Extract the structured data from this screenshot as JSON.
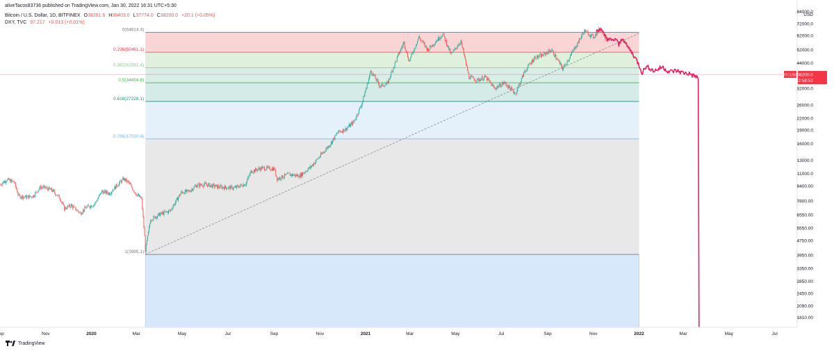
{
  "header": {
    "published": "aliveTacos83736 published on TradingView.com, Jan 30, 2022 16:31 UTC+5:30",
    "btc": {
      "name": "Bitcoin / U.S. Dollar, 1D, BITFINEX",
      "open_label": "O",
      "open": "38201.6",
      "high_label": "H",
      "high": "38403.0",
      "low_label": "L",
      "low": "37774.0",
      "close_label": "C",
      "close": "38200.0",
      "change": "+20.1 (+0.05%)"
    },
    "dxy": {
      "name": "DXY, TVC",
      "value": "97.217",
      "change": "+0.013 (+0.01%)"
    }
  },
  "footer": {
    "brand": "TradingView"
  },
  "colors": {
    "btc_up": "#26a69a",
    "btc_down": "#ef5350",
    "dxy": "#e91e63",
    "price_line": "#f23645",
    "fib_0": "#f8d0d0",
    "fib_1": "#dcefd8",
    "fib_2": "#d4ece4",
    "fib_3": "#cfe9e6",
    "fib_4": "#e1effb",
    "fib_5": "#e5e5e5",
    "fib_6": "#d2e6fa"
  },
  "chart_data": {
    "type": "line",
    "scale": "log",
    "xlim": [
      "2019-09-01",
      "2022-07-31"
    ],
    "ylim": [
      1600,
      86000
    ],
    "currency_label": "USD",
    "y_ticks": [
      84000,
      72000,
      62000,
      52000,
      44000,
      38000,
      32000,
      26000,
      22000,
      19000,
      16000,
      13000,
      11000,
      9400,
      7800,
      6550,
      5550,
      4750,
      3950,
      3350,
      2850,
      2450,
      2090,
      1810
    ],
    "y_tick_labels": [
      "84000.0",
      "72000.0",
      "62000.0",
      "52000.0",
      "44000.0",
      "38000.0",
      "32000.0",
      "26000.0",
      "22000.0",
      "19000.0",
      "16000.0",
      "13000.0",
      "11000.0",
      "9400.00",
      "7800.00",
      "6550.00",
      "5550.00",
      "4750.00",
      "3950.00",
      "3350.00",
      "2850.00",
      "2450.00",
      "2090.00",
      "1810.00"
    ],
    "x_ticks": [
      {
        "date": "2019-09-01",
        "label": "Sep",
        "bold": false
      },
      {
        "date": "2019-11-01",
        "label": "Nov",
        "bold": false
      },
      {
        "date": "2020-01-01",
        "label": "2020",
        "bold": true
      },
      {
        "date": "2020-03-01",
        "label": "Mar",
        "bold": false
      },
      {
        "date": "2020-05-01",
        "label": "May",
        "bold": false
      },
      {
        "date": "2020-07-01",
        "label": "Jul",
        "bold": false
      },
      {
        "date": "2020-09-01",
        "label": "Sep",
        "bold": false
      },
      {
        "date": "2020-11-01",
        "label": "Nov",
        "bold": false
      },
      {
        "date": "2021-01-01",
        "label": "2021",
        "bold": true
      },
      {
        "date": "2021-03-01",
        "label": "Mar",
        "bold": false
      },
      {
        "date": "2021-05-01",
        "label": "May",
        "bold": false
      },
      {
        "date": "2021-07-01",
        "label": "Jul",
        "bold": false
      },
      {
        "date": "2021-09-01",
        "label": "Sep",
        "bold": false
      },
      {
        "date": "2021-11-01",
        "label": "Nov",
        "bold": false
      },
      {
        "date": "2022-01-01",
        "label": "2022",
        "bold": true
      },
      {
        "date": "2022-03-01",
        "label": "Mar",
        "bold": false
      },
      {
        "date": "2022-05-01",
        "label": "May",
        "bold": false
      },
      {
        "date": "2022-07-01",
        "label": "Jul",
        "bold": false
      }
    ],
    "fibonacci": {
      "start": {
        "date": "2020-03-13",
        "price": 3995.1
      },
      "end": {
        "date": "2022-01-01",
        "price": 64814.4
      },
      "levels": [
        {
          "ratio": "0",
          "price": "64814.4",
          "label": "0(64814.4)",
          "color": "#787b86"
        },
        {
          "ratio": "0.236",
          "price": "50461.1",
          "label": "0.236(50461.1)",
          "color": "#f23645"
        },
        {
          "ratio": "0.382",
          "price": "41581.4",
          "label": "0.382(41581.4)",
          "color": "#81c784"
        },
        {
          "ratio": "0.5",
          "price": "34404.8",
          "label": "0.5(34404.8)",
          "color": "#4caf50"
        },
        {
          "ratio": "0.618",
          "price": "27228.1",
          "label": "0.618(27228.1)",
          "color": "#089981"
        },
        {
          "ratio": "0.786",
          "price": "17010.4",
          "label": "0.786(17010.4)",
          "color": "#64b5f6"
        },
        {
          "ratio": "1",
          "price": "3995.1",
          "label": "1(3995.1)",
          "color": "#787b86"
        }
      ]
    },
    "trendline": {
      "start": {
        "date": "2020-03-13",
        "price": 4000
      },
      "end": {
        "date": "2022-01-01",
        "price": 64000
      }
    },
    "price_marker": {
      "label": "BTCUSD",
      "price": "38200.0",
      "countdown": "12:58:52"
    },
    "series": [
      {
        "name": "BTCUSD",
        "type": "candles",
        "points": [
          [
            "2019-09-01",
            9600
          ],
          [
            "2019-09-10",
            10200
          ],
          [
            "2019-09-20",
            9900
          ],
          [
            "2019-09-26",
            8300
          ],
          [
            "2019-10-05",
            8200
          ],
          [
            "2019-10-15",
            8300
          ],
          [
            "2019-10-25",
            9300
          ],
          [
            "2019-11-01",
            9200
          ],
          [
            "2019-11-10",
            8900
          ],
          [
            "2019-11-20",
            8100
          ],
          [
            "2019-11-26",
            7100
          ],
          [
            "2019-12-05",
            7400
          ],
          [
            "2019-12-17",
            6700
          ],
          [
            "2019-12-25",
            7200
          ],
          [
            "2020-01-05",
            7500
          ],
          [
            "2020-01-15",
            8800
          ],
          [
            "2020-01-25",
            8600
          ],
          [
            "2020-02-05",
            9600
          ],
          [
            "2020-02-13",
            10300
          ],
          [
            "2020-02-20",
            9800
          ],
          [
            "2020-03-01",
            8500
          ],
          [
            "2020-03-08",
            8000
          ],
          [
            "2020-03-12",
            5000
          ],
          [
            "2020-03-13",
            4200
          ],
          [
            "2020-03-20",
            6200
          ],
          [
            "2020-04-01",
            6600
          ],
          [
            "2020-04-15",
            6900
          ],
          [
            "2020-04-30",
            8700
          ],
          [
            "2020-05-10",
            8800
          ],
          [
            "2020-05-20",
            9500
          ],
          [
            "2020-06-01",
            9600
          ],
          [
            "2020-06-20",
            9300
          ],
          [
            "2020-07-10",
            9200
          ],
          [
            "2020-07-25",
            9700
          ],
          [
            "2020-08-01",
            11300
          ],
          [
            "2020-08-15",
            11800
          ],
          [
            "2020-09-01",
            11700
          ],
          [
            "2020-09-05",
            10300
          ],
          [
            "2020-09-20",
            10900
          ],
          [
            "2020-10-05",
            10700
          ],
          [
            "2020-10-20",
            12000
          ],
          [
            "2020-11-01",
            13700
          ],
          [
            "2020-11-15",
            16000
          ],
          [
            "2020-11-25",
            18500
          ],
          [
            "2020-12-05",
            19200
          ],
          [
            "2020-12-16",
            21000
          ],
          [
            "2020-12-27",
            26500
          ],
          [
            "2021-01-08",
            40000
          ],
          [
            "2021-01-20",
            33000
          ],
          [
            "2021-01-30",
            34000
          ],
          [
            "2021-02-10",
            45000
          ],
          [
            "2021-02-21",
            57000
          ],
          [
            "2021-02-28",
            45000
          ],
          [
            "2021-03-13",
            61000
          ],
          [
            "2021-03-25",
            52000
          ],
          [
            "2021-04-14",
            63500
          ],
          [
            "2021-04-25",
            49000
          ],
          [
            "2021-05-08",
            58000
          ],
          [
            "2021-05-19",
            37000
          ],
          [
            "2021-05-30",
            35500
          ],
          [
            "2021-06-10",
            37000
          ],
          [
            "2021-06-22",
            32000
          ],
          [
            "2021-07-05",
            34500
          ],
          [
            "2021-07-20",
            30000
          ],
          [
            "2021-08-01",
            39500
          ],
          [
            "2021-08-14",
            47000
          ],
          [
            "2021-08-25",
            48500
          ],
          [
            "2021-09-06",
            52000
          ],
          [
            "2021-09-21",
            41000
          ],
          [
            "2021-10-01",
            48000
          ],
          [
            "2021-10-20",
            66000
          ],
          [
            "2021-11-01",
            61000
          ],
          [
            "2021-11-10",
            68000
          ],
          [
            "2021-11-20",
            58000
          ]
        ]
      },
      {
        "name": "DXY",
        "type": "line",
        "points": [
          [
            "2021-11-05",
            66000
          ],
          [
            "2021-11-10",
            68000
          ],
          [
            "2021-11-15",
            63000
          ],
          [
            "2021-11-20",
            60000
          ],
          [
            "2021-11-26",
            58000
          ],
          [
            "2021-12-01",
            60000
          ],
          [
            "2021-12-05",
            55000
          ],
          [
            "2021-12-10",
            61000
          ],
          [
            "2021-12-15",
            55000
          ],
          [
            "2021-12-20",
            52000
          ],
          [
            "2021-12-27",
            47000
          ],
          [
            "2022-01-01",
            43000
          ],
          [
            "2022-01-05",
            39000
          ],
          [
            "2022-01-10",
            42000
          ],
          [
            "2022-01-15",
            41500
          ],
          [
            "2022-01-20",
            40000
          ],
          [
            "2022-01-25",
            40500
          ],
          [
            "2022-02-01",
            42000
          ],
          [
            "2022-02-10",
            39500
          ],
          [
            "2022-02-20",
            40000
          ],
          [
            "2022-03-01",
            39000
          ],
          [
            "2022-03-10",
            38500
          ],
          [
            "2022-03-15",
            37500
          ],
          [
            "2022-03-20",
            37000
          ],
          [
            "2022-03-21",
            36000
          ],
          [
            "2022-03-22",
            1600
          ]
        ]
      }
    ]
  }
}
